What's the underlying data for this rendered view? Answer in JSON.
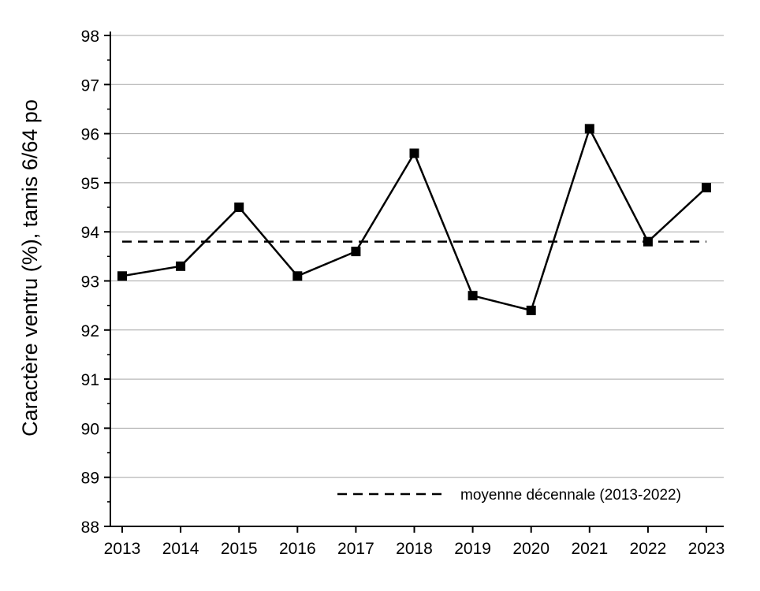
{
  "chart_data": {
    "type": "line",
    "title": "",
    "xlabel": "",
    "ylabel": "Caractère ventru (%), tamis 6/64 po",
    "categories": [
      "2013",
      "2014",
      "2015",
      "2016",
      "2017",
      "2018",
      "2019",
      "2020",
      "2021",
      "2022",
      "2023"
    ],
    "series": [
      {
        "values": [
          93.1,
          93.3,
          94.5,
          93.1,
          93.6,
          95.6,
          92.7,
          92.4,
          96.1,
          93.8,
          94.9
        ],
        "color": "#000000",
        "marker": "square"
      }
    ],
    "reference_line": {
      "name": "moyenne décennale (2013-2022)",
      "value": 93.8,
      "style": "dashed",
      "color": "#000000"
    },
    "ylim": [
      88,
      98
    ],
    "yticks": [
      "88",
      "89",
      "90",
      "91",
      "92",
      "93",
      "94",
      "95",
      "96",
      "97",
      "98"
    ],
    "grid": "horizontal",
    "gridcolor": "#a6a6a6",
    "legend_position": "bottom-right"
  }
}
